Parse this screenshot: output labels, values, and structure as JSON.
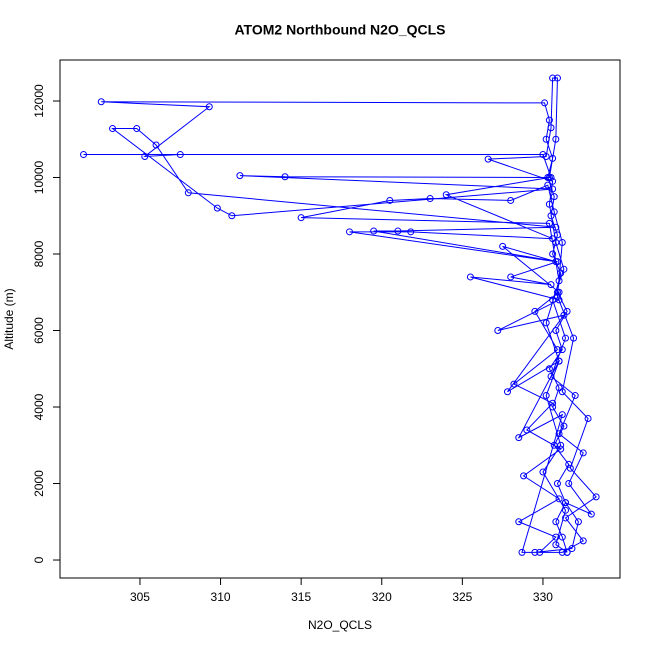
{
  "chart_data": {
    "type": "line",
    "title": "ATOM2 Northbound N2O_QCLS",
    "x_label": "N2O_QCLS",
    "y_label": "Altitude (m)",
    "color": "#0000ff",
    "markers": "open-circle",
    "x": [
      331.5,
      331.2,
      330.8,
      331.4,
      330.9,
      331.6,
      330.7,
      331.3,
      330.6,
      331.0,
      330.4,
      331.2,
      330.8,
      331.5,
      330.9,
      331.1,
      330.6,
      330.9,
      330.5,
      330.7,
      330.3,
      330.6,
      330.2,
      330.4,
      330.1,
      302.6,
      309.3,
      305.3,
      307.5,
      301.5,
      330.0,
      330.5,
      314.0,
      311.2,
      330.6,
      310.7,
      309.8,
      303.3,
      304.8,
      306.0,
      308.0,
      330.8,
      321.0,
      319.5,
      330.9,
      328.0,
      330.5,
      325.5,
      331.0,
      327.2,
      331.3,
      327.8,
      331.0,
      328.5,
      331.2,
      328.7,
      329.5,
      331.8,
      332.2,
      331.4,
      333.0,
      331.6,
      332.5,
      331.0,
      332.0,
      330.5,
      331.4,
      330.6,
      331.3,
      330.8,
      330.4,
      330.6,
      326.6,
      330.2,
      330.5,
      330.6,
      330.9,
      330.8,
      330.4,
      324.0,
      330.6,
      321.8,
      318.0,
      330.8,
      327.5,
      331.0,
      329.5,
      330.9,
      328.2,
      330.6,
      329.0,
      331.1,
      328.8,
      331.0,
      328.5,
      330.8,
      329.8,
      331.2,
      332.5,
      331.4,
      333.3,
      331.7,
      332.8,
      331.2,
      331.9,
      330.9,
      331.2,
      330.7,
      330.3,
      328.0,
      323.0,
      320.5,
      315.0,
      330.4,
      331.0,
      330.2,
      331.0,
      330.2,
      331.1,
      330.0,
      331.4,
      330.8,
      331.5
    ],
    "values": [
      200,
      600,
      1000,
      1500,
      2000,
      2500,
      3000,
      3500,
      4000,
      4500,
      5000,
      5500,
      6000,
      6500,
      7000,
      7500,
      8000,
      8500,
      9000,
      9500,
      10000,
      10500,
      11000,
      11500,
      11950,
      11980,
      11850,
      10550,
      10600,
      10600,
      10600,
      10000,
      10020,
      10050,
      9700,
      9000,
      9200,
      11280,
      11280,
      10850,
      9600,
      8700,
      8600,
      8600,
      7800,
      7400,
      7200,
      7400,
      6800,
      6000,
      6400,
      4400,
      5200,
      3200,
      3800,
      200,
      200,
      300,
      1000,
      1500,
      1200,
      2000,
      2800,
      3300,
      4300,
      4800,
      5800,
      6800,
      7600,
      8300,
      9300,
      9900,
      10480,
      10550,
      11300,
      12600,
      12600,
      11000,
      10000,
      9550,
      8400,
      8580,
      8580,
      7800,
      8200,
      7000,
      6500,
      5500,
      4600,
      4100,
      3400,
      2900,
      2200,
      1600,
      1000,
      600,
      200,
      200,
      500,
      1100,
      1650,
      2400,
      3700,
      4400,
      5800,
      6900,
      8300,
      9100,
      9800,
      9400,
      9450,
      9400,
      8950,
      8800,
      7300,
      6200,
      5200,
      4300,
      3000,
      2300,
      1300,
      400,
      200
    ],
    "xlim": [
      300.04,
      334.78
    ],
    "ylim": [
      -470,
      13072
    ],
    "xticks": [
      305,
      310,
      315,
      320,
      325,
      330
    ],
    "yticks": [
      0,
      2000,
      4000,
      6000,
      8000,
      10000,
      12000
    ],
    "grid": false
  }
}
